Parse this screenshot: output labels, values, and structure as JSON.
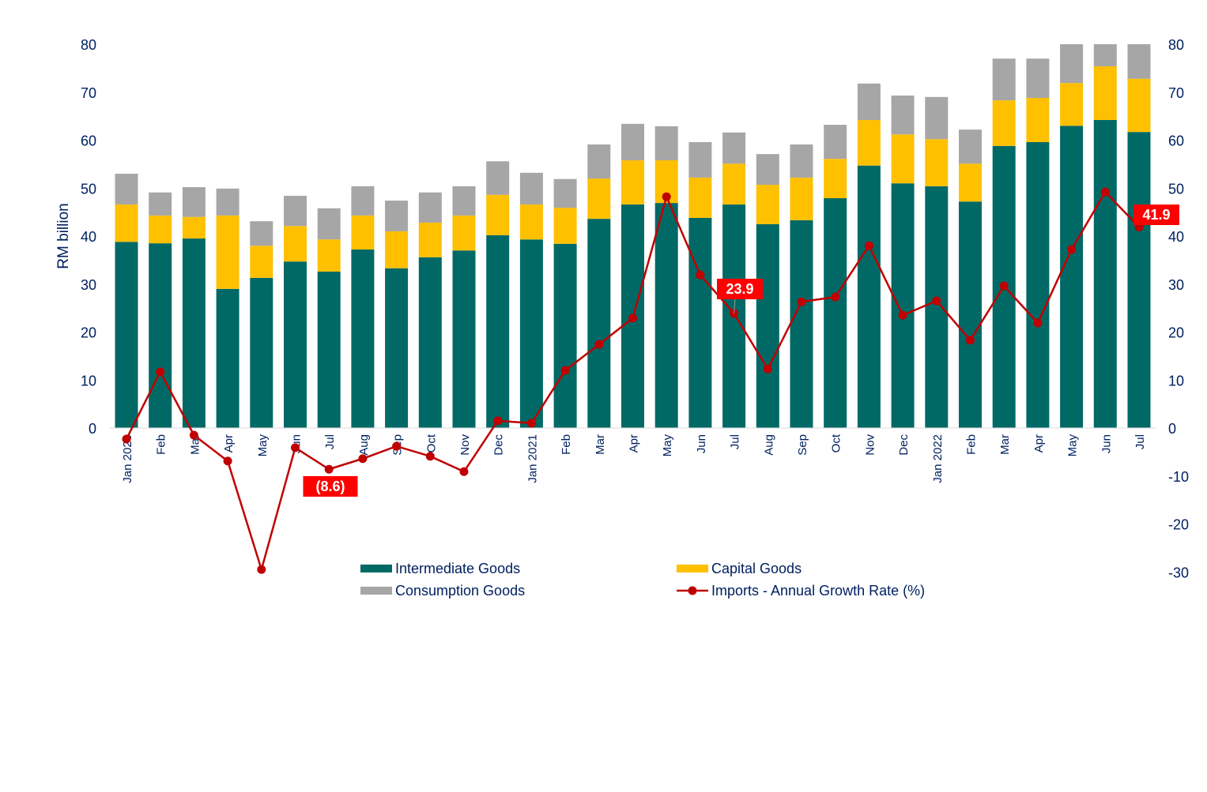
{
  "chart_data": {
    "type": "bar",
    "stacked": true,
    "title": "",
    "ylabel": "RM billion",
    "ylim": [
      0,
      80
    ],
    "y_ticks": [
      0,
      10,
      20,
      30,
      40,
      50,
      60,
      70,
      80
    ],
    "y2lim": [
      -30,
      80
    ],
    "y2_ticks": [
      -30,
      -20,
      -10,
      0,
      10,
      20,
      30,
      40,
      50,
      60,
      70,
      80
    ],
    "grid": false,
    "legend_placement": "bottom",
    "categories": [
      "Jan 2020",
      "Feb",
      "Mar",
      "Apr",
      "May",
      "Jun",
      "Jul",
      "Aug",
      "Sep",
      "Oct",
      "Nov",
      "Dec",
      "Jan 2021",
      "Feb",
      "Mar",
      "Apr",
      "May",
      "Jun",
      "Jul",
      "Aug",
      "Sep",
      "Oct",
      "Nov",
      "Dec",
      "Jan 2022",
      "Feb",
      "Mar",
      "Apr",
      "May",
      "Jun",
      "Jul"
    ],
    "series": [
      {
        "name": "Intermediate Goods",
        "type": "bar",
        "axis": "left",
        "color": "#006966",
        "values": [
          38.8,
          38.5,
          39.5,
          29.0,
          31.3,
          34.7,
          32.6,
          37.2,
          33.3,
          35.6,
          37.0,
          40.2,
          39.3,
          38.4,
          43.6,
          46.6,
          46.9,
          43.8,
          46.6,
          42.5,
          43.3,
          47.9,
          54.7,
          51.0,
          50.4,
          47.2,
          58.8,
          59.6,
          63.0,
          64.2,
          61.7
        ]
      },
      {
        "name": "Capital Goods",
        "type": "bar",
        "axis": "left",
        "color": "#FFC000",
        "values": [
          7.8,
          5.8,
          4.5,
          15.3,
          6.7,
          7.4,
          6.7,
          7.1,
          7.7,
          7.2,
          7.3,
          8.4,
          7.3,
          7.5,
          8.4,
          9.2,
          8.9,
          8.4,
          8.5,
          8.2,
          8.9,
          8.2,
          9.5,
          10.2,
          9.8,
          7.9,
          9.5,
          9.2,
          8.9,
          11.2,
          11.1
        ]
      },
      {
        "name": "Consumption Goods",
        "type": "bar",
        "axis": "left",
        "color": "#A6A6A6",
        "values": [
          6.4,
          4.8,
          6.2,
          5.6,
          5.1,
          6.3,
          6.5,
          6.1,
          6.4,
          6.3,
          6.1,
          7.0,
          6.6,
          6.0,
          7.1,
          7.6,
          7.1,
          7.4,
          6.5,
          6.4,
          6.9,
          7.1,
          7.6,
          8.1,
          8.8,
          7.1,
          8.7,
          8.2,
          8.1,
          8.0,
          8.2
        ]
      },
      {
        "name": "Imports - Annual Growth Rate (%)",
        "type": "line",
        "axis": "right",
        "color": "#C00000",
        "values": [
          -2.3,
          11.7,
          -1.5,
          -6.9,
          -29.5,
          -4.1,
          -8.6,
          -6.4,
          -3.8,
          -5.9,
          -9.1,
          1.5,
          1.0,
          12.0,
          17.4,
          22.9,
          48.2,
          31.9,
          23.9,
          12.3,
          26.3,
          27.3,
          38.0,
          23.5,
          26.5,
          18.3,
          29.6,
          21.9,
          37.2,
          49.2,
          41.9
        ]
      }
    ],
    "annotations": [
      {
        "index": 6,
        "text": "(8.6)"
      },
      {
        "index": 18,
        "text": "23.9"
      },
      {
        "index": 30,
        "text": "41.9"
      }
    ]
  }
}
